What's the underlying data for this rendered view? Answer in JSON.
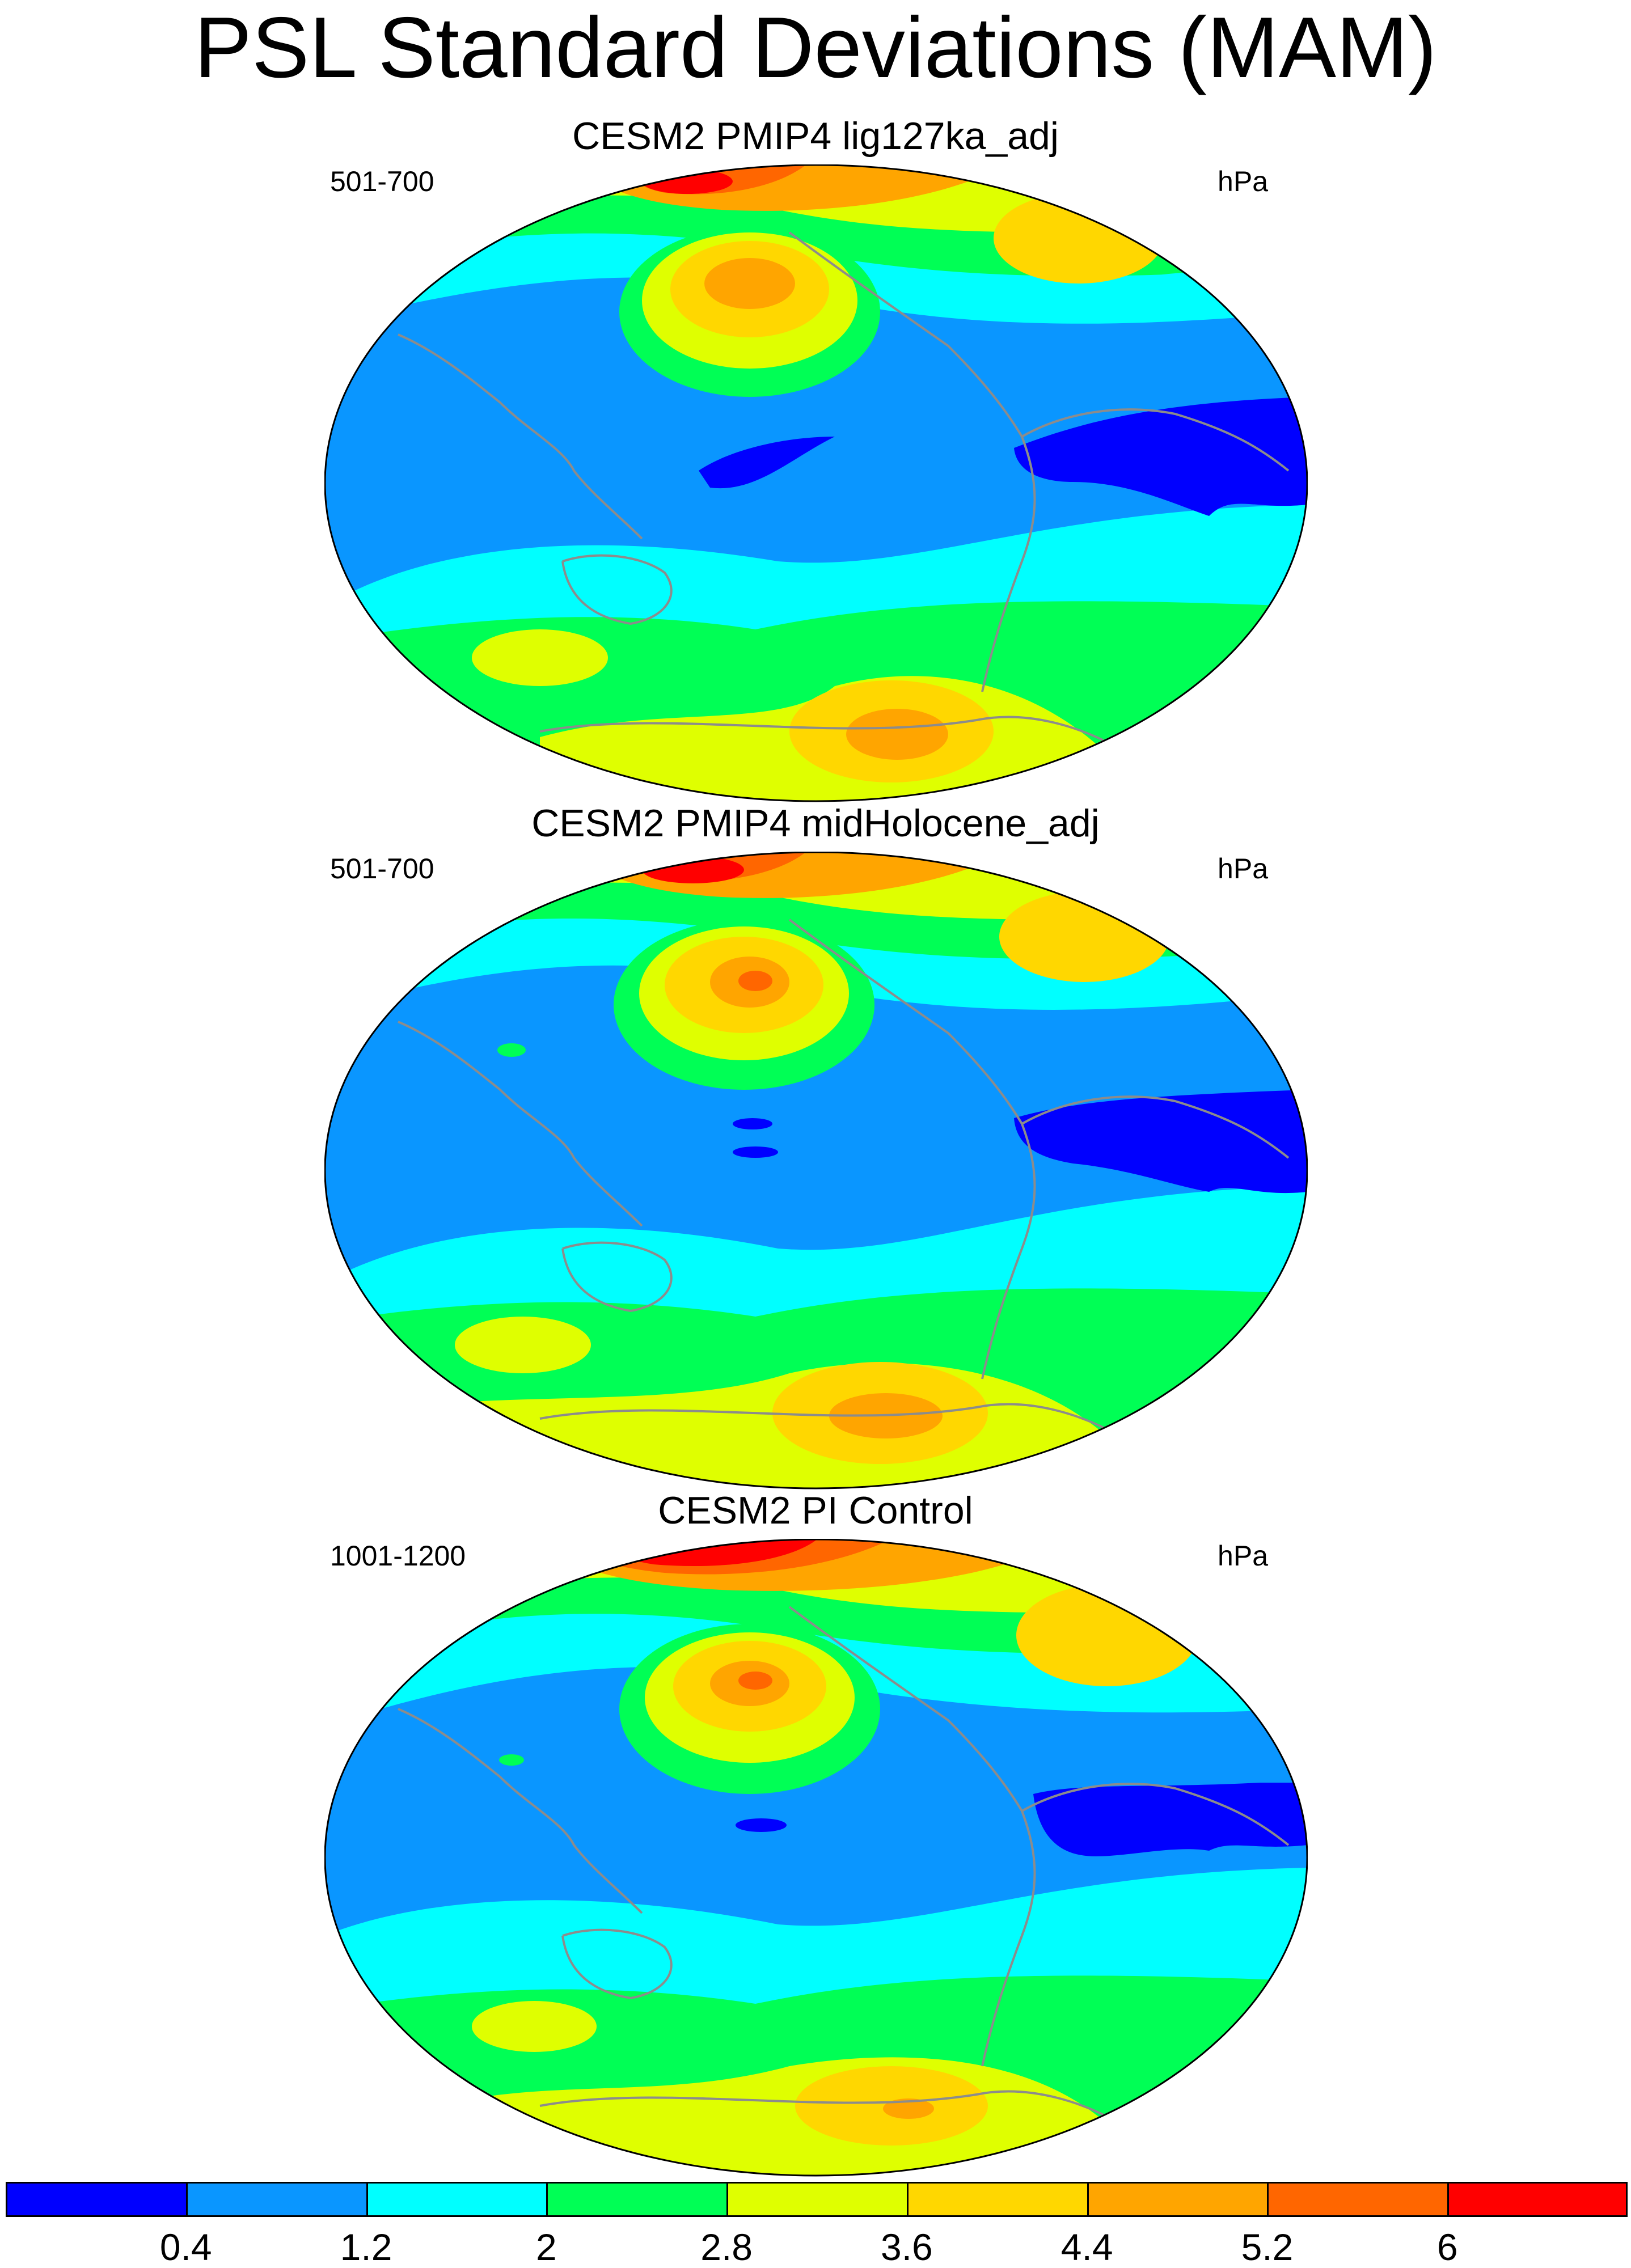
{
  "title": "PSL Standard Deviations (MAM)",
  "colors": {
    "c0": "#0000ff",
    "c1": "#0a96ff",
    "c2": "#00ffff",
    "c3": "#00ff55",
    "c4": "#dfff00",
    "c5": "#ffd700",
    "c6": "#ffa500",
    "c7": "#ff6600",
    "c8": "#ff0000",
    "coast": "#8c8c8c",
    "outline": "#000000"
  },
  "panels": [
    {
      "title": "CESM2 PMIP4 lig127ka_adj",
      "left": "501-700",
      "right": "hPa"
    },
    {
      "title": "CESM2 PMIP4 midHolocene_adj",
      "left": "501-700",
      "right": "hPa"
    },
    {
      "title": "CESM2 PI Control",
      "left": "1001-1200",
      "right": "hPa"
    }
  ],
  "labelbar": {
    "levels": [
      "0.4",
      "1.2",
      "2",
      "2.8",
      "3.6",
      "4.4",
      "5.2",
      "6"
    ],
    "color_count": 9
  }
}
